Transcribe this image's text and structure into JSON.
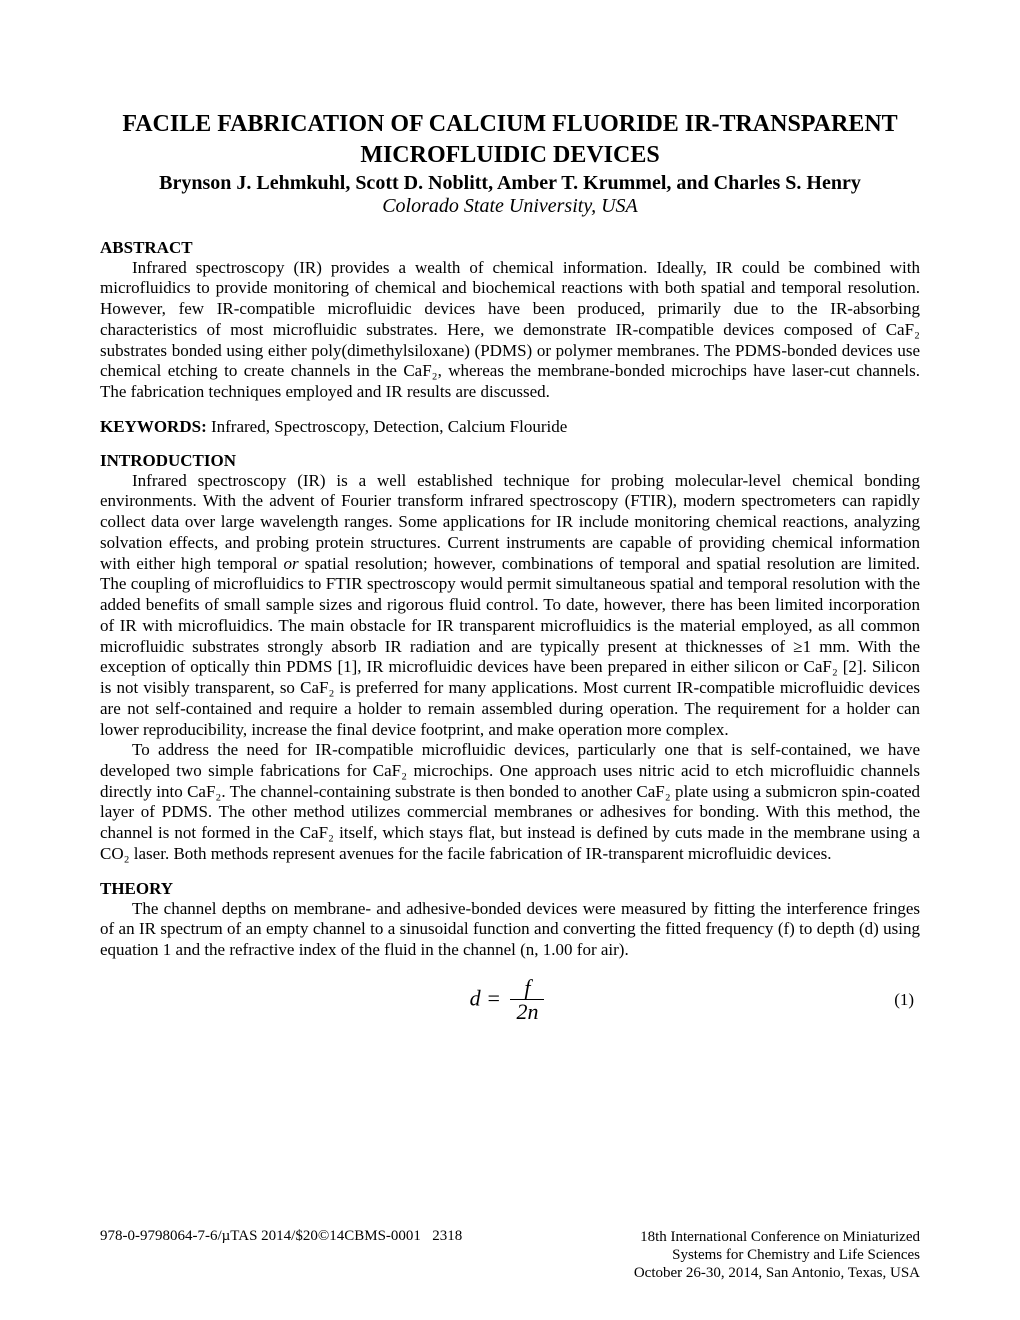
{
  "title_line1": "FACILE FABRICATION OF CALCIUM FLUORIDE IR-TRANSPARENT",
  "title_line2": "MICROFLUIDIC DEVICES",
  "authors": "Brynson J. Lehmkuhl, Scott D. Noblitt, Amber T. Krummel, and Charles S. Henry",
  "affiliation": "Colorado State University, USA",
  "abstract_heading": "ABSTRACT",
  "abstract_body": "Infrared spectroscopy (IR) provides a wealth of chemical information.  Ideally, IR could be combined with microfluidics to provide monitoring of chemical and biochemical reactions with both spatial and temporal resolution.  However, few IR-compatible microfluidic devices have been produced, primarily due to the IR-absorbing characteristics of most microfluidic substrates.  Here, we demonstrate IR-compatible devices composed of CaF₂ substrates bonded using either poly(dimethylsiloxane) (PDMS) or polymer membranes.  The PDMS-bonded devices use chemical etching to create channels in the CaF₂, whereas the membrane-bonded microchips have laser-cut channels.  The fabrication techniques employed and IR results are discussed.",
  "keywords_label": "KEYWORDS:",
  "keywords_body": " Infrared, Spectroscopy, Detection, Calcium Flouride",
  "intro_heading": "INTRODUCTION",
  "intro_p1_a": "Infrared spectroscopy (IR) is a well established technique for probing molecular-level chemical bonding environments.  With the advent of Fourier transform infrared spectroscopy (FTIR), modern spectrometers can rapidly collect data over large wavelength ranges.  Some applications for IR include monitoring chemical reactions, analyzing solvation effects, and probing protein structures.  Current instruments are capable of providing chemical information with either high temporal ",
  "intro_p1_or": "or",
  "intro_p1_b": " spatial resolution; however, combinations of temporal and spatial resolution are limited.  The coupling of microfluidics to FTIR spectroscopy would permit simultaneous spatial and temporal resolution with the added benefits of small sample sizes and rigorous fluid control.  To date, however, there has been limited incorporation of IR with microfluidics.  The main obstacle for IR transparent microfluidics is the material employed, as all common microfluidic substrates strongly absorb IR radiation and are typically present at thicknesses of ≥1 mm.  With the exception of optically thin PDMS [1], IR microfluidic devices have been prepared in either silicon or CaF₂ [2].  Silicon is not visibly transparent, so CaF₂ is preferred for many applications.  Most current IR-compatible microfluidic devices are not self-contained and require a holder to remain assembled during operation.  The requirement for a holder can lower reproducibility, increase the final device footprint, and make operation more complex.",
  "intro_p2": "To address the need for IR-compatible microfluidic devices, particularly one that is self-contained, we have developed two simple fabrications for CaF₂ microchips.  One approach uses nitric acid to etch microfluidic channels directly into CaF₂.  The channel-containing substrate is then bonded to another CaF₂ plate using a submicron spin-coated layer of PDMS.  The other method utilizes commercial membranes or adhesives for bonding.  With this method, the channel is not formed in the CaF₂ itself, which stays flat, but instead is defined by cuts made in the membrane using a CO₂ laser.  Both methods represent avenues for the facile fabrication of IR-transparent microfluidic devices.",
  "theory_heading": "THEORY",
  "theory_body": "The channel depths on membrane- and adhesive-bonded devices were measured by fitting the interference fringes of an IR spectrum of an empty channel to a sinusoidal function and converting the fitted frequency (f) to depth (d) using equation 1 and the refractive index of the fluid in the channel (n, 1.00 for air).",
  "equation_lhs": "d =",
  "equation_num": "f",
  "equation_den": "2n",
  "equation_number": "(1)",
  "footer_left_a": "978-0-9798064-7-6/µTAS 2014/$20©14CBMS-0001",
  "footer_left_page": "2318",
  "footer_right_l1": "18th International Conference on Miniaturized",
  "footer_right_l2": "Systems for Chemistry and Life Sciences",
  "footer_right_l3": "October 26-30, 2014, San Antonio, Texas, USA"
}
